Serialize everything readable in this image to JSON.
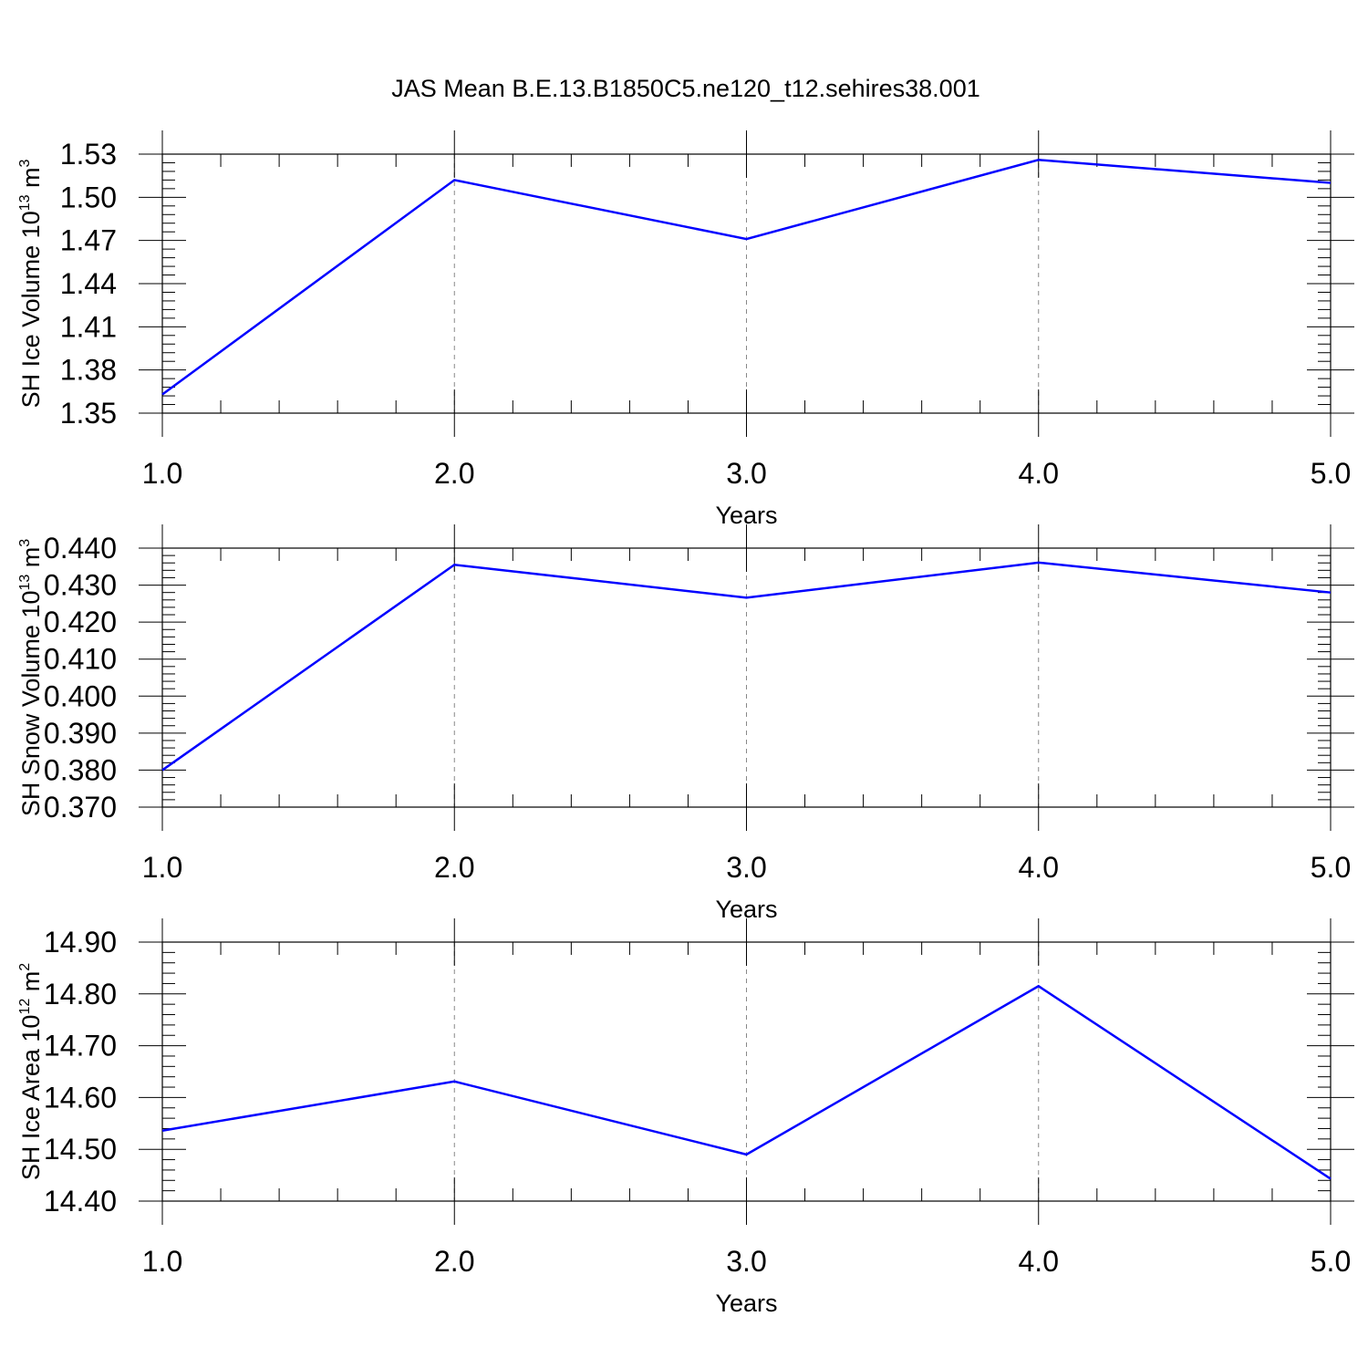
{
  "title": "JAS Mean B.E.13.B1850C5.ne120_t12.sehires38.001",
  "colors": {
    "line": "#0000ff",
    "axis": "#000000",
    "grid": "#888888"
  },
  "chart_data": [
    {
      "type": "line",
      "ylabel": {
        "base": "SH Ice Volume 10",
        "exp": "13",
        "unit": " m",
        "unit_exp": "3"
      },
      "xlabel": "Years",
      "x": [
        1.0,
        2.0,
        3.0,
        4.0,
        5.0
      ],
      "x_ticks": [
        "1.0",
        "2.0",
        "3.0",
        "4.0",
        "5.0"
      ],
      "xlim": [
        1.0,
        5.0
      ],
      "ylim": [
        1.35,
        1.53
      ],
      "y_ticks": [
        1.35,
        1.38,
        1.41,
        1.44,
        1.47,
        1.5,
        1.53
      ],
      "y_tick_labels": [
        "1.35",
        "1.38",
        "1.41",
        "1.44",
        "1.47",
        "1.50",
        "1.53"
      ],
      "series": [
        {
          "values": [
            1.363,
            1.512,
            1.471,
            1.526,
            1.51
          ]
        }
      ],
      "grid": "vertical dashed at major x ticks"
    },
    {
      "type": "line",
      "ylabel": {
        "base": "SH Snow Volume 10",
        "exp": "13",
        "unit": " m",
        "unit_exp": "3"
      },
      "xlabel": "Years",
      "x": [
        1.0,
        2.0,
        3.0,
        4.0,
        5.0
      ],
      "x_ticks": [
        "1.0",
        "2.0",
        "3.0",
        "4.0",
        "5.0"
      ],
      "xlim": [
        1.0,
        5.0
      ],
      "ylim": [
        0.37,
        0.44
      ],
      "y_ticks": [
        0.37,
        0.38,
        0.39,
        0.4,
        0.41,
        0.42,
        0.43,
        0.44
      ],
      "y_tick_labels": [
        "0.370",
        "0.380",
        "0.390",
        "0.400",
        "0.410",
        "0.420",
        "0.430",
        "0.440"
      ],
      "series": [
        {
          "values": [
            0.38,
            0.4355,
            0.4266,
            0.4361,
            0.428
          ]
        }
      ],
      "grid": "vertical dashed at major x ticks"
    },
    {
      "type": "line",
      "ylabel": {
        "base": "SH Ice Area 10",
        "exp": "12",
        "unit": " m",
        "unit_exp": "2"
      },
      "xlabel": "Years",
      "x": [
        1.0,
        2.0,
        3.0,
        4.0,
        5.0
      ],
      "x_ticks": [
        "1.0",
        "2.0",
        "3.0",
        "4.0",
        "5.0"
      ],
      "xlim": [
        1.0,
        5.0
      ],
      "ylim": [
        14.4,
        14.9
      ],
      "y_ticks": [
        14.4,
        14.5,
        14.6,
        14.7,
        14.8,
        14.9
      ],
      "y_tick_labels": [
        "14.40",
        "14.50",
        "14.60",
        "14.70",
        "14.80",
        "14.90"
      ],
      "series": [
        {
          "values": [
            14.536,
            14.631,
            14.49,
            14.815,
            14.443
          ]
        }
      ],
      "grid": "vertical dashed at major x ticks"
    }
  ]
}
